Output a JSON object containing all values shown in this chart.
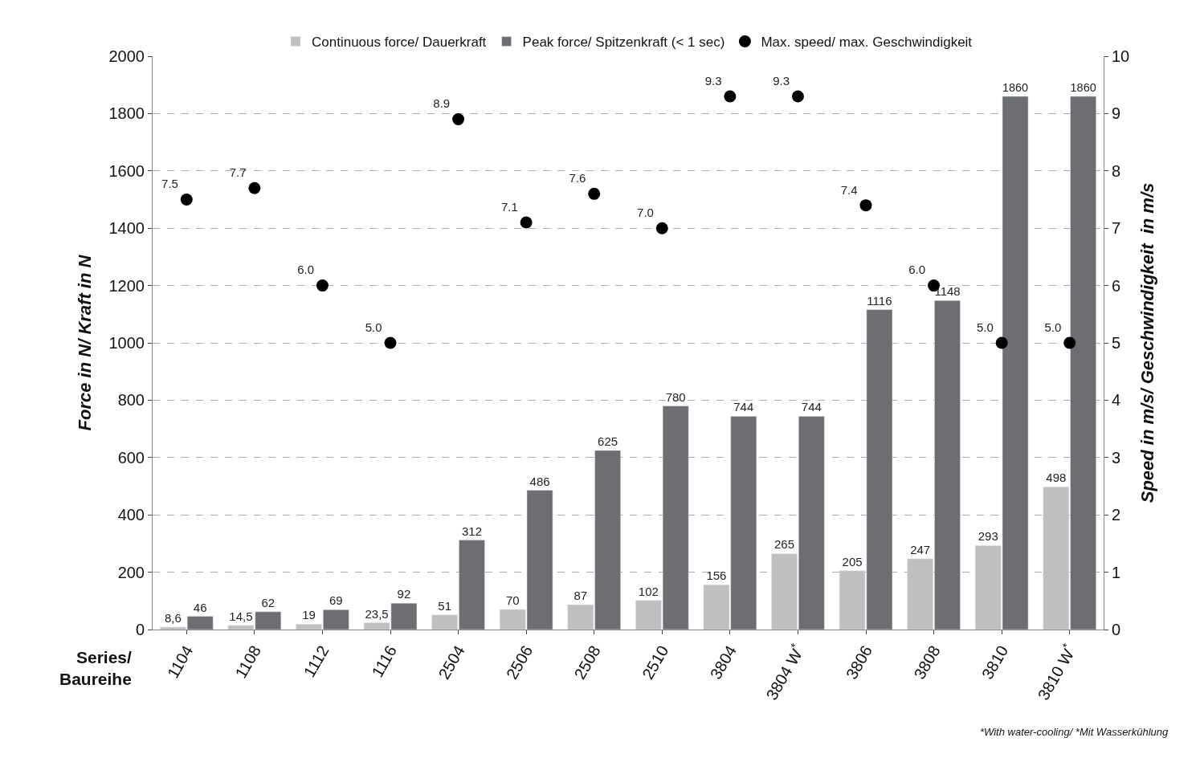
{
  "chart_data": {
    "type": "bar",
    "categories": [
      "1104",
      "1108",
      "1112",
      "1116",
      "2504",
      "2506",
      "2508",
      "2510",
      "3804",
      "3804 W$^{*}$",
      "3806",
      "3808",
      "3810",
      "3810 W$^{*}$"
    ],
    "xlabel": "Series/ Baureihe",
    "ylabel": "Force in N/ Kraft in N",
    "y2label": "Speed in m/s/ Geschwindigkeit  in m/s",
    "ylim": [
      0,
      2000
    ],
    "yticks": [
      0,
      200,
      400,
      600,
      800,
      1000,
      1200,
      1400,
      1600,
      1800,
      2000
    ],
    "y2lim": [
      0,
      10
    ],
    "y2ticks": [
      0,
      1,
      2,
      3,
      4,
      5,
      6,
      7,
      8,
      9,
      10
    ],
    "grid": "y",
    "legend": "top",
    "series": [
      {
        "name": "Continuous force/ Dauerkraft",
        "color": "#bfbfbf",
        "values": [
          8.6,
          14.5,
          19,
          23.5,
          51,
          70,
          87,
          102,
          156,
          265,
          205,
          247,
          293,
          498
        ],
        "value_labels": [
          "8,6",
          "14,5",
          "19",
          "23,5",
          "51",
          "70",
          "87",
          "102",
          "156",
          "265",
          "205",
          "247",
          "293",
          "498"
        ]
      },
      {
        "name": "Peak force/ Spitzenkraft (< 1 sec)",
        "color": "#6d6e71",
        "values": [
          46,
          62,
          69,
          92,
          312,
          486,
          625,
          780,
          744,
          744,
          1116,
          1148,
          1860,
          1860
        ],
        "value_labels": [
          "46",
          "62",
          "69",
          "92",
          "312",
          "486",
          "625",
          "780",
          "744",
          "744",
          "1116",
          "1148",
          "1860",
          "1860"
        ]
      },
      {
        "name": "Max. speed/ max. Geschwindigkeit",
        "type": "scatter",
        "axis": "y2",
        "marker": "circle",
        "color": "#000000",
        "values": [
          7.5,
          7.7,
          6.0,
          5.0,
          8.9,
          7.1,
          7.6,
          7.0,
          9.3,
          9.3,
          7.4,
          6.0,
          5.0,
          5.0
        ],
        "value_labels": [
          "7.5",
          "7.7",
          "6.0",
          "5.0",
          "8.9",
          "7.1",
          "7.6",
          "7.0",
          "9.3",
          "9.3",
          "7.4",
          "6.0",
          "5.0",
          "5.0"
        ]
      }
    ],
    "annotations": [
      "*With water-cooling/ *Mit Wasserkühlung"
    ]
  }
}
